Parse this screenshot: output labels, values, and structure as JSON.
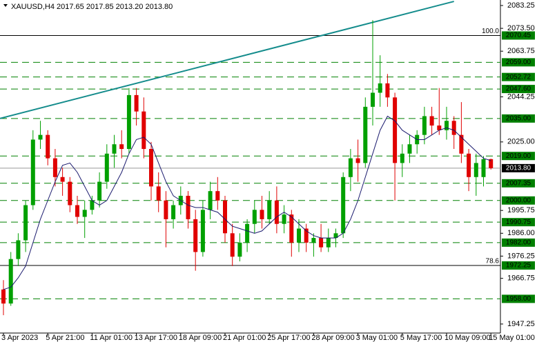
{
  "chart_data": {
    "type": "candlestick",
    "title": "XAUUSD,H4 2017.65 2017.85 2013.20 2013.80",
    "categories": [
      "3 Apr 2023",
      null,
      null,
      null,
      null,
      null,
      "5 Apr 21:00",
      null,
      null,
      null,
      null,
      null,
      "11 Apr 01:00",
      null,
      null,
      null,
      null,
      null,
      "13 Apr 17:00",
      null,
      null,
      null,
      null,
      null,
      "18 Apr 09:00",
      null,
      null,
      null,
      null,
      null,
      "21 Apr 01:00",
      null,
      null,
      null,
      null,
      null,
      "25 Apr 17:00",
      null,
      null,
      null,
      null,
      null,
      "28 Apr 09:00",
      null,
      null,
      null,
      null,
      null,
      "3 May 01:00",
      null,
      null,
      null,
      null,
      null,
      "5 May 17:00",
      null,
      null,
      null,
      null,
      null,
      "10 May 09:00",
      null,
      null,
      null,
      null,
      null,
      "15 May 01:00"
    ],
    "open": [
      1962,
      1956,
      1975,
      1983,
      1998,
      2026,
      2028,
      2018,
      2010,
      2008,
      1998,
      1993,
      1996,
      2000,
      2008,
      2020,
      2024,
      2022,
      2045,
      2038,
      2022,
      2006,
      2000,
      1992,
      1998,
      2002,
      1992,
      1978,
      1996,
      2004,
      2000,
      1986,
      1976,
      1982,
      1990,
      1996,
      1992,
      2000,
      1990,
      1994,
      1982,
      1988,
      1982,
      1984,
      1980,
      1984,
      1986,
      2010,
      2018,
      2016,
      2040,
      2046,
      2050,
      2044,
      2016,
      2020,
      2024,
      2028,
      2036,
      2032,
      2030,
      2034,
      2028,
      2020,
      2010,
      2010,
      2017.65
    ],
    "high": [
      1966,
      1978,
      1986,
      2000,
      2030,
      2034,
      2030,
      2022,
      2014,
      2010,
      2002,
      2000,
      2002,
      2012,
      2024,
      2028,
      2030,
      2048,
      2048,
      2044,
      2025,
      2012,
      2004,
      2000,
      2006,
      2004,
      1996,
      2000,
      2008,
      2010,
      2002,
      1990,
      1986,
      1992,
      2000,
      2002,
      2004,
      2006,
      1998,
      1996,
      1992,
      1990,
      1986,
      1990,
      1988,
      1988,
      2012,
      2022,
      2026,
      2044,
      2077,
      2062,
      2054,
      2046,
      2024,
      2028,
      2030,
      2040,
      2040,
      2048,
      2040,
      2036,
      2042,
      2022,
      2020,
      2019,
      2017.85
    ],
    "low": [
      1951,
      1955,
      1972,
      1978,
      1996,
      2022,
      2015,
      2006,
      2002,
      1995,
      1990,
      1984,
      1994,
      1997,
      2005,
      2014,
      2018,
      2020,
      2032,
      2018,
      2000,
      1995,
      1980,
      1988,
      1994,
      1988,
      1970,
      1976,
      1992,
      1996,
      1982,
      1972,
      1974,
      1978,
      1986,
      1988,
      1990,
      1986,
      1986,
      1976,
      1978,
      1978,
      1976,
      1978,
      1978,
      1980,
      1984,
      2004,
      2008,
      2014,
      2032,
      2040,
      2040,
      2000,
      2010,
      2016,
      2020,
      2024,
      2028,
      2028,
      2026,
      2022,
      2016,
      2004,
      2002,
      2006,
      2013.2
    ],
    "close": [
      1956,
      1975,
      1983,
      1998,
      2026,
      2028,
      2018,
      2010,
      2008,
      1998,
      1993,
      1996,
      2000,
      2008,
      2020,
      2024,
      2022,
      2045,
      2038,
      2022,
      2006,
      2000,
      1992,
      1998,
      2002,
      1992,
      1978,
      1996,
      2004,
      2000,
      1986,
      1976,
      1982,
      1990,
      1996,
      1992,
      2000,
      1990,
      1994,
      1982,
      1988,
      1982,
      1984,
      1980,
      1984,
      1986,
      2010,
      2018,
      2016,
      2040,
      2046,
      2050,
      2044,
      2016,
      2020,
      2024,
      2028,
      2036,
      2032,
      2030,
      2034,
      2028,
      2020,
      2010,
      2016,
      2017.65,
      2013.8
    ],
    "bull_color": "#00a000",
    "bear_color": "#e00000",
    "ma": {
      "color": "#1a1a6e",
      "values": [
        1962,
        1963,
        1967,
        1972,
        1982,
        1992,
        2000,
        2008,
        2015,
        2016,
        2012,
        2006,
        2000,
        1998,
        2000,
        2006,
        2012,
        2020,
        2026,
        2027,
        2024,
        2016,
        2008,
        2002,
        2000,
        1998,
        1997,
        1997,
        1996,
        1995,
        1992,
        1989,
        1988,
        1987,
        1986,
        1987,
        1990,
        1993,
        1995,
        1993,
        1990,
        1987,
        1985,
        1984,
        1984,
        1984,
        1986,
        1992,
        2000,
        2010,
        2020,
        2030,
        2036,
        2034,
        2030,
        2028,
        2026,
        2026,
        2028,
        2030,
        2031,
        2030,
        2027,
        2024,
        2021,
        2018,
        2017
      ]
    },
    "trendline": {
      "color": "#148c8c",
      "x": [
        0,
        61
      ],
      "y": [
        2035.4,
        2085.0
      ]
    },
    "level_color": "#008000",
    "levels": [
      {
        "value": 2070.45,
        "label": "2070.45",
        "style": "solid",
        "fib": "100.0"
      },
      {
        "value": 2059,
        "label": "2059.00",
        "style": "dashed"
      },
      {
        "value": 2052.72,
        "label": "2052.72",
        "style": "dashed"
      },
      {
        "value": 2047.6,
        "label": "2047.60",
        "style": "dashed"
      },
      {
        "value": 2035,
        "label": "2035.00",
        "style": "dashed"
      },
      {
        "value": 2019,
        "label": "2019.00",
        "style": "dashed"
      },
      {
        "value": 2007.35,
        "label": "2007.35",
        "style": "dashed"
      },
      {
        "value": 2000,
        "label": "2000.00",
        "style": "dashed"
      },
      {
        "value": 1990.75,
        "label": "1990.75",
        "style": "dashed"
      },
      {
        "value": 1982,
        "label": "1982.00",
        "style": "dashed"
      },
      {
        "value": 1972.25,
        "label": "1972.25",
        "style": "solid",
        "fib": "78.6"
      },
      {
        "value": 1958,
        "label": "1958.00",
        "style": "dashed"
      }
    ],
    "last": {
      "value": 2013.8,
      "label": "2013.80"
    },
    "ylim": [
      1943.4,
      2085.6
    ],
    "yticks": [
      2083.25,
      {
        "value": 2073.5,
        "label": "2073.50"
      },
      2063.75,
      2044.25,
      {
        "value": 2025,
        "label": "2025.00"
      },
      1995.75,
      {
        "value": 1986,
        "label": "1986.00"
      },
      1976.25,
      1966.75,
      1947.25
    ]
  }
}
